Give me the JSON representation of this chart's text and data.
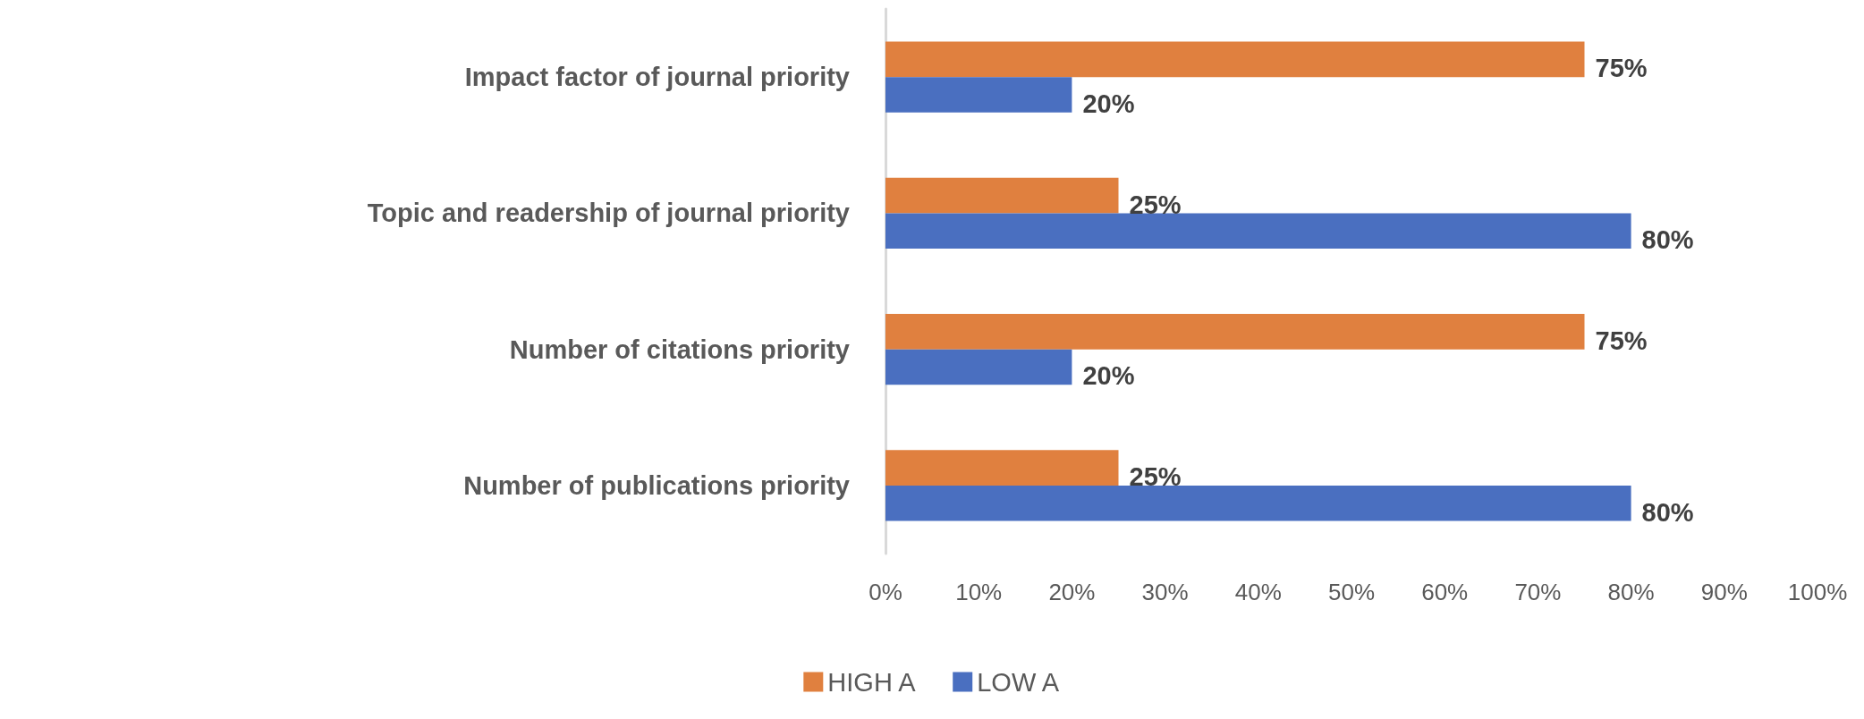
{
  "chart_data": {
    "type": "bar",
    "orientation": "horizontal",
    "categories": [
      "Impact factor of journal priority",
      "Topic and readership of journal priority",
      "Number of citations priority",
      "Number of publications priority"
    ],
    "series": [
      {
        "name": "HIGH A",
        "color": "#e0803f",
        "values": [
          75,
          25,
          75,
          25
        ],
        "value_labels": [
          "75%",
          "25%",
          "75%",
          "25%"
        ]
      },
      {
        "name": "LOW A",
        "color": "#4a6fc0",
        "values": [
          20,
          80,
          20,
          80
        ],
        "value_labels": [
          "20%",
          "80%",
          "20%",
          "80%"
        ]
      }
    ],
    "xlim": [
      0,
      100
    ],
    "xticks": [
      {
        "value": 0,
        "label": "0%"
      },
      {
        "value": 10,
        "label": "10%"
      },
      {
        "value": 20,
        "label": "20%"
      },
      {
        "value": 30,
        "label": "30%"
      },
      {
        "value": 40,
        "label": "40%"
      },
      {
        "value": 50,
        "label": "50%"
      },
      {
        "value": 60,
        "label": "60%"
      },
      {
        "value": 70,
        "label": "70%"
      },
      {
        "value": 80,
        "label": "80%"
      },
      {
        "value": 90,
        "label": "90%"
      },
      {
        "value": 100,
        "label": "100%"
      }
    ],
    "grid": false,
    "legend": "bottom"
  }
}
